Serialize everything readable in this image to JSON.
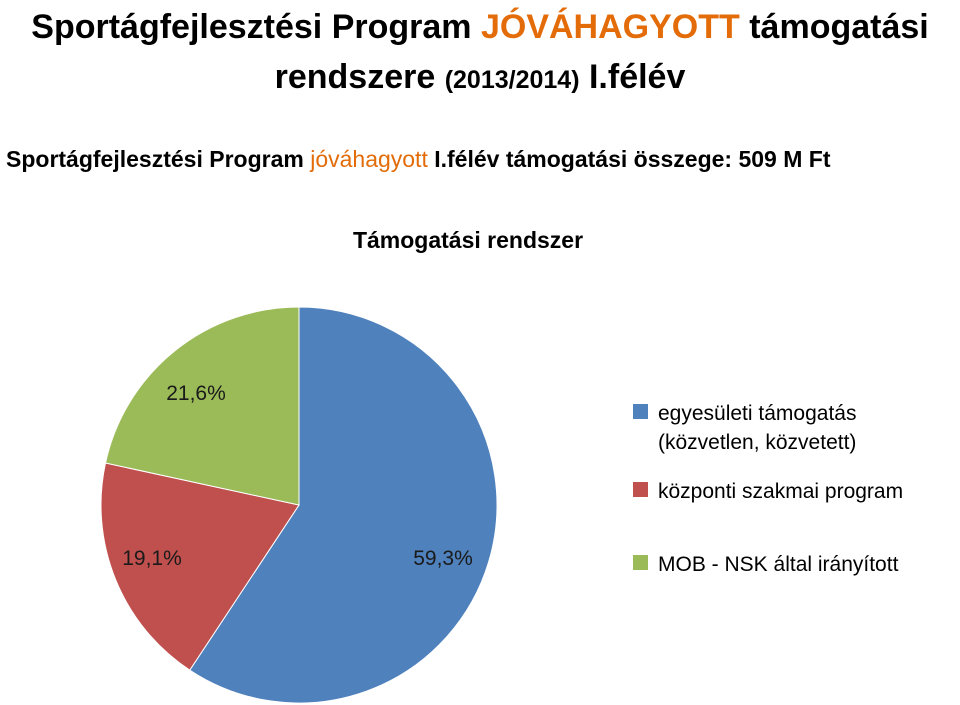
{
  "title": {
    "line1_part1": "Sportágfejlesztési Program",
    "line1_accent": "JÓVÁHAGYOTT",
    "line1_part2": "támogatási",
    "line2_part1": "rendszere",
    "line2_year": "(2013/2014)",
    "line2_part2": "I.félév"
  },
  "subtitle": {
    "part1": "Sportágfejlesztési Program",
    "accent": "jóváhagyott",
    "part2": "I.félév támogatási összege: 509 M Ft"
  },
  "colors": {
    "accent": "#e36c09",
    "blue": "#4f81bd",
    "red": "#c0504d",
    "green": "#9bbb59"
  },
  "chart_data": {
    "type": "pie",
    "title": "Támogatási rendszer",
    "start_angle_deg": 0,
    "direction": "clockwise",
    "slices": [
      {
        "legend": [
          "egyesületi támogatás",
          "(közvetlen, közvetett)"
        ],
        "value": 59.3,
        "label": "59,3%",
        "color": "#4f81bd"
      },
      {
        "legend": [
          "központi szakmai program"
        ],
        "value": 19.1,
        "label": "19,1%",
        "color": "#c0504d"
      },
      {
        "legend": [
          "MOB - NSK által irányított"
        ],
        "value": 21.6,
        "label": "21,6%",
        "color": "#9bbb59"
      }
    ],
    "legend_position": "right"
  }
}
